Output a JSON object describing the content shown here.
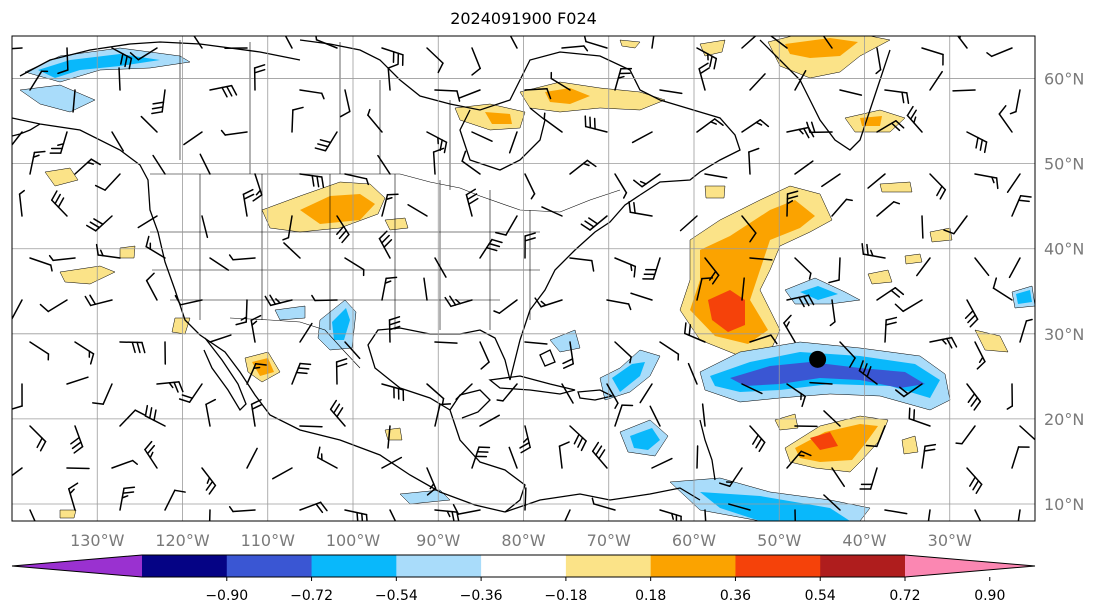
{
  "title": "2024091900 F024",
  "map": {
    "lon_labels": [
      "130°W",
      "120°W",
      "110°W",
      "100°W",
      "90°W",
      "80°W",
      "70°W",
      "60°W",
      "50°W",
      "40°W",
      "30°W"
    ],
    "lat_labels": [
      "60°N",
      "50°N",
      "40°N",
      "30°N",
      "20°N",
      "10°N"
    ],
    "lon_values": [
      -130,
      -120,
      -110,
      -100,
      -90,
      -80,
      -70,
      -60,
      -50,
      -40,
      -30
    ],
    "lat_values": [
      60,
      50,
      40,
      30,
      20,
      10
    ],
    "extent": {
      "lon_min": -140,
      "lon_max": -20,
      "lat_min": 8,
      "lat_max": 65
    },
    "storm_marker": {
      "lon": -45.5,
      "lat": 27,
      "label": ""
    },
    "anomaly_colors": {
      "pos_018_036": "#fbe388",
      "pos_036_054": "#fba300",
      "pos_054_072": "#f5420a",
      "neg_018_036": "#a9dcfa",
      "neg_036_054": "#09b8fb",
      "neg_054_072": "#3a56d3"
    }
  },
  "colorbar": {
    "colors": [
      "#9a31d0",
      "#050385",
      "#3a56d3",
      "#09b8fb",
      "#a9dcfa",
      "#ffffff",
      "#fbe388",
      "#fba300",
      "#f5420a",
      "#af1d1d",
      "#fb87b2"
    ],
    "tick_labels": [
      "−0.90",
      "−0.72",
      "−0.54",
      "−0.36",
      "−0.18",
      "0.18",
      "0.36",
      "0.54",
      "0.72",
      "0.90"
    ]
  }
}
